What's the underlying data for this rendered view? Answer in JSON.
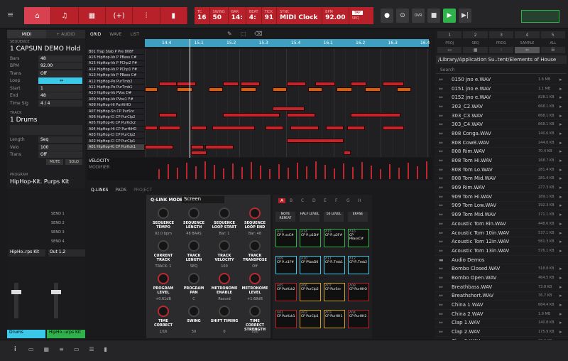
{
  "header": {
    "modes": [
      "⌂",
      "♫",
      "▦",
      "(+)",
      "⫶",
      "▮"
    ],
    "transport": [
      {
        "l": "TC",
        "v": "16",
        "l2": "SWING",
        "v2": "50"
      },
      {
        "l": "BAR",
        "v": "14:"
      },
      {
        "l": "BEAT",
        "v": "4:"
      },
      {
        "l": "TICK",
        "v": "91"
      },
      {
        "l": "SYNC",
        "v": "MIDI Clock"
      },
      {
        "l": "BPM",
        "v": "92.00"
      }
    ],
    "tap": "TAP",
    "seq": "SEQ",
    "buttons": [
      "●",
      "⊙",
      "OVR",
      "■",
      "▶",
      "▶|"
    ]
  },
  "left": {
    "tabs": [
      "MIDI",
      "+ AUDIO"
    ],
    "seq_label": "SEQUENCE",
    "seq_name": "1 CAPSUN DEMO Hold",
    "params": [
      {
        "k": "Bars",
        "v": "48"
      },
      {
        "k": "BPM",
        "v": "92.00"
      },
      {
        "k": "Trans",
        "v": "Off"
      },
      {
        "k": "Loop",
        "v": "⇔"
      },
      {
        "k": "Start",
        "v": "1"
      },
      {
        "k": "End",
        "v": "48"
      },
      {
        "k": "Time Sig",
        "v": "4   /   4"
      }
    ],
    "track_label": "TRACK",
    "track_name": "1 Drums",
    "tparams": [
      {
        "k": "Length",
        "v": "Seq"
      },
      {
        "k": "Velo",
        "v": "100"
      },
      {
        "k": "Trans",
        "v": "Off"
      }
    ],
    "mute": "MUTE",
    "solo": "SOLO",
    "prog_label": "PROGRAM",
    "prog_name": "HipHop-Kit. Purps Kit"
  },
  "grid": {
    "tabs": [
      "GRID",
      "WAVE",
      "LIST"
    ],
    "ruler": [
      "14.4",
      "15.1",
      "15.2",
      "15.3",
      "15.4",
      "16.1",
      "16.2",
      "16.3",
      "16.4"
    ],
    "tracks": [
      "B01 Trap Stab P Pre 808F",
      "A16 HipHop-Vo P PBass C#",
      "A15 HipHop-Vo P PChp2 F#",
      "A14 HipHop-Vo P PChp1 F#",
      "A13 HipHop-Vo P PBass C#",
      "A12 HipHop-Pe PurTmb2",
      "A11 HipHop-Pe PurTmb1",
      "A10 HipHop-Vo PVox D#",
      "A09 HipHop-Vo PVox1 F#",
      "A08 HipHop-Hi PurHiHO",
      "A07 HipHop-Sn CP PurSnr",
      "A06 HipHop-Cl CP PurClp2",
      "A05 HipHop-Ki CP PurKck2",
      "A04 HipHop-Hi CP PurHiHO",
      "A03 HipHop-Cl CP PurClp2",
      "A02 HipHop-Cl CP PurClp1",
      "A01 HipHop-Ki CP PurKck1"
    ],
    "velocity": "VELOCITY",
    "modifier": "MODIFIER"
  },
  "qlink": {
    "tabs": [
      "Q-LINKS",
      "PADS",
      "PROJECT"
    ],
    "mode_label": "Q-LINK MODE:",
    "mode": "Screen",
    "knobs": [
      {
        "l": "SEQUENCE TEMPO",
        "v": "92.0 bpm"
      },
      {
        "l": "SEQUENCE LENGTH",
        "v": "48 BARS"
      },
      {
        "l": "SEQUENCE LOOP START",
        "v": "Bar: 1"
      },
      {
        "l": "SEQUENCE LOOP END",
        "v": "Bar: 48"
      },
      {
        "l": "CURRENT TRACK",
        "v": "TRACK: 1"
      },
      {
        "l": "TRACK LENGTH",
        "v": "SEQ"
      },
      {
        "l": "TRACK VELOCITY",
        "v": "100"
      },
      {
        "l": "TRACK TRANSPOSE",
        "v": "Off"
      },
      {
        "l": "PROGRAM LEVEL",
        "v": "+0.61dB"
      },
      {
        "l": "PROGRAM PAN",
        "v": "C"
      },
      {
        "l": "METRONOME ENABLE",
        "v": "Record"
      },
      {
        "l": "METRONOME LEVEL",
        "v": "+1.68dB"
      },
      {
        "l": "TIME CORRECT",
        "v": "1/16"
      },
      {
        "l": "SWING",
        "v": "50"
      },
      {
        "l": "SHIFT TIMING",
        "v": "0"
      },
      {
        "l": "TIME CORRECT STRENGTH",
        "v": "100"
      }
    ]
  },
  "pads": {
    "banks": [
      "A",
      "B",
      "C",
      "D",
      "E",
      "F",
      "G",
      "H"
    ],
    "btns": [
      "NOTE REPEAT",
      "HALF LEVEL",
      "16 LEVEL",
      "ERASE"
    ],
    "pads": [
      {
        "n": "A13",
        "l": "CP P..ssC#"
      },
      {
        "n": "A14",
        "l": "CP P..p1D#"
      },
      {
        "n": "A15",
        "l": "CP P..p2F#"
      },
      {
        "n": "A16",
        "l": "CP PBassC#"
      },
      {
        "n": "A09",
        "l": "CP P..x1F#"
      },
      {
        "n": "A10",
        "l": "CP PVoxD0"
      },
      {
        "n": "A11",
        "l": "CP P..Tmb1"
      },
      {
        "n": "A12",
        "l": "CP P..Tmb2"
      },
      {
        "n": "A05",
        "l": "CP PurKck2"
      },
      {
        "n": "A06",
        "l": "CP PurClp2"
      },
      {
        "n": "A07",
        "l": "CP PurSnr"
      },
      {
        "n": "A08",
        "l": "CP PurHHO"
      },
      {
        "n": "A01",
        "l": "CP PurKck1"
      },
      {
        "n": "A02",
        "l": "CP PurClp1"
      },
      {
        "n": "A03",
        "l": "CP PurHH1"
      },
      {
        "n": "A04",
        "l": "CP PurHH2"
      }
    ]
  },
  "mixer": {
    "sends": [
      "SEND 1",
      "SEND 2",
      "SEND 3",
      "SEND 4"
    ],
    "prog": "HipHo..rps Kit",
    "out": "Out 1,2",
    "ch1": "Drums",
    "ch2": "HipHo..urps Kit"
  },
  "browser": {
    "nums": [
      "1",
      "2",
      "3",
      "4",
      "5"
    ],
    "tabs": [
      "PROJ",
      "SEQ",
      "PROG",
      "SAMPLE",
      "ALL"
    ],
    "path": "/Library/Application Su..tent/Elements of House",
    "search": "Search",
    "files": [
      {
        "n": "0150 jno e.WAV",
        "s": "1.6 MB"
      },
      {
        "n": "0151 jno e.WAV",
        "s": "1.1 MB"
      },
      {
        "n": "0152 jno e.WAV",
        "s": "828.1 KB"
      },
      {
        "n": "303_C2.WAV",
        "s": "668.1 KB"
      },
      {
        "n": "303_C3.WAV",
        "s": "668.1 KB"
      },
      {
        "n": "303_C4.WAV",
        "s": "668.1 KB"
      },
      {
        "n": "808 Conga.WAV",
        "s": "140.6 KB"
      },
      {
        "n": "808 CowB.WAV",
        "s": "244.0 KB"
      },
      {
        "n": "808 Rim.WAV",
        "s": "70.4 KB"
      },
      {
        "n": "808 Tom Hi.WAV",
        "s": "168.7 KB"
      },
      {
        "n": "808 Tom Lo.WAV",
        "s": "281.4 KB"
      },
      {
        "n": "808 Tom Mid.WAV",
        "s": "281.4 KB"
      },
      {
        "n": "909 Rim.WAV",
        "s": "277.3 KB"
      },
      {
        "n": "909 Tom Hi.WAV",
        "s": "189.1 KB"
      },
      {
        "n": "909 Tom Low.WAV",
        "s": "192.3 KB"
      },
      {
        "n": "909 Tom Mid.WAV",
        "s": "171.1 KB"
      },
      {
        "n": "Acoustic Tom 8in.WAV",
        "s": "448.6 KB"
      },
      {
        "n": "Acoustic Tom 10in.WAV",
        "s": "537.1 KB"
      },
      {
        "n": "Acoustic Tom 12in.WAV",
        "s": "581.3 KB"
      },
      {
        "n": "Acoustic Tom 13in.WAV",
        "s": "576.1 KB"
      },
      {
        "n": "Audio Demos",
        "s": "",
        "folder": true
      },
      {
        "n": "Bombo Closed.WAV",
        "s": "318.8 KB"
      },
      {
        "n": "Bombo Open.WAV",
        "s": "464.5 KB"
      },
      {
        "n": "Breathbass.WAV",
        "s": "73.8 KB"
      },
      {
        "n": "Breathshort.WAV",
        "s": "76.7 KB"
      },
      {
        "n": "China 1.WAV",
        "s": "684.4 KB"
      },
      {
        "n": "China 2.WAV",
        "s": "1.9 MB"
      },
      {
        "n": "Clap 1.WAV",
        "s": "140.8 KB"
      },
      {
        "n": "Clap 2.WAV",
        "s": "175.9 KB"
      },
      {
        "n": "Clap 3.WAV",
        "s": "80.8 KB"
      }
    ]
  }
}
